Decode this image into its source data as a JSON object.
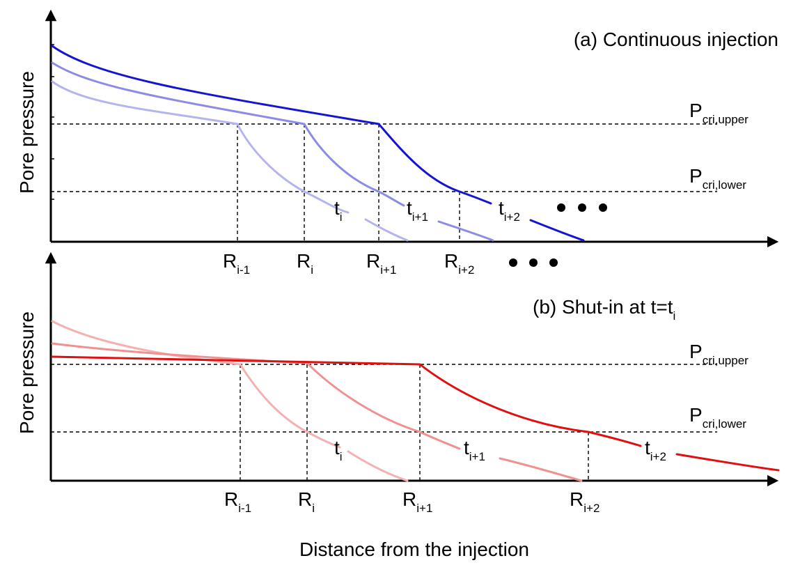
{
  "colors": {
    "blue_latest": "#1414d2",
    "blue_mid": "#8c8ce6",
    "blue_early": "#b4b4ef",
    "red_latest": "#e01010",
    "red_mid": "#f09090",
    "red_early": "#f5b0b0"
  },
  "panel_a": {
    "title": "(a) Continuous injection",
    "y_axis_label": "Pore pressure",
    "p_upper": {
      "base": "P",
      "sub": "cri,upper"
    },
    "p_lower": {
      "base": "P",
      "sub": "cri,lower"
    },
    "r_labels": [
      {
        "base": "R",
        "sub": "i-1"
      },
      {
        "base": "R",
        "sub": "i"
      },
      {
        "base": "R",
        "sub": "i+1"
      },
      {
        "base": "R",
        "sub": "i+2"
      }
    ],
    "t_labels": [
      {
        "base": "t",
        "sub": "i"
      },
      {
        "base": "t",
        "sub": "i+1"
      },
      {
        "base": "t",
        "sub": "i+2"
      }
    ],
    "curve_colors": [
      "blue_early",
      "blue_mid",
      "blue_latest"
    ]
  },
  "panel_b": {
    "title": "(b) Shut-in at t=t",
    "title_sub": "i",
    "y_axis_label": "Pore pressure",
    "p_upper": {
      "base": "P",
      "sub": "cri,upper"
    },
    "p_lower": {
      "base": "P",
      "sub": "cri,lower"
    },
    "r_labels": [
      {
        "base": "R",
        "sub": "i-1"
      },
      {
        "base": "R",
        "sub": "i"
      },
      {
        "base": "R",
        "sub": "i+1"
      },
      {
        "base": "R",
        "sub": "i+2"
      }
    ],
    "t_labels": [
      {
        "base": "t",
        "sub": "i"
      },
      {
        "base": "t",
        "sub": "i+1"
      },
      {
        "base": "t",
        "sub": "i+2"
      }
    ],
    "curve_colors": [
      "red_early",
      "red_mid",
      "red_latest"
    ]
  },
  "x_axis_label": "Distance from the injection"
}
